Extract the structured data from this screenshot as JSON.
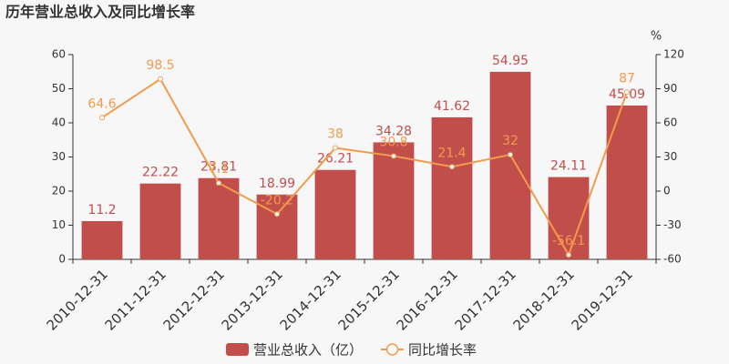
{
  "chart_data": {
    "type": "bar-line",
    "title": "历年营业总收入及同比增长率",
    "y2label": "%",
    "categories": [
      "2010-12-31",
      "2011-12-31",
      "2012-12-31",
      "2013-12-31",
      "2014-12-31",
      "2015-12-31",
      "2016-12-31",
      "2017-12-31",
      "2018-12-31",
      "2019-12-31"
    ],
    "series": [
      {
        "name": "营业总收入（亿）",
        "type": "bar",
        "color": "#c24e4b",
        "values": [
          11.2,
          22.22,
          23.81,
          18.99,
          26.21,
          34.28,
          41.62,
          54.95,
          24.11,
          45.09
        ]
      },
      {
        "name": "同比增长率",
        "type": "line",
        "axis": "y2",
        "color": "#f29b4c",
        "values": [
          64.6,
          98.5,
          7.1,
          -20.2,
          38,
          30.8,
          21.4,
          32,
          -56.1,
          87
        ]
      }
    ],
    "ylim": [
      0,
      60
    ],
    "yticks": [
      0,
      10,
      20,
      30,
      40,
      50,
      60
    ],
    "y2lim": [
      -60,
      120
    ],
    "y2ticks": [
      -60,
      -30,
      0,
      30,
      60,
      90,
      120
    ],
    "grid": false
  }
}
